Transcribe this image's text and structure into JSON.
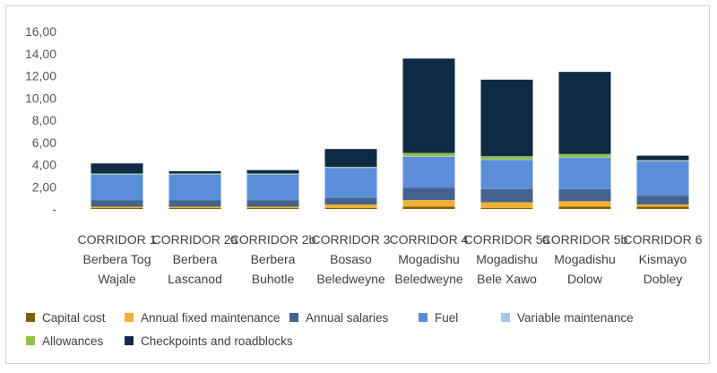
{
  "chart_data": {
    "type": "bar",
    "stacked": true,
    "categories": [
      [
        "CORRIDOR 1",
        "Berbera Tog",
        "Wajale"
      ],
      [
        "CORRIDOR 2a",
        "Berbera",
        "Lascanod"
      ],
      [
        "CORRIDOR 2b",
        "Berbera",
        "Buhotle"
      ],
      [
        "CORRIDOR 3",
        "Bosaso",
        "Beledweyne"
      ],
      [
        "CORRIDOR 4",
        "Mogadishu",
        "Beledweyne"
      ],
      [
        "CORRIDOR 5a",
        "Mogadishu",
        "Bele Xawo"
      ],
      [
        "CORRIDOR 5b",
        "Mogadishu",
        "Dolow"
      ],
      [
        "CORRIDOR 6",
        "Kismayo",
        "Dobley"
      ]
    ],
    "series": [
      {
        "name": "Capital cost",
        "color": "#7f6000",
        "values": [
          0.1,
          0.1,
          0.1,
          0.1,
          0.2,
          0.1,
          0.2,
          0.2
        ]
      },
      {
        "name": "Annual fixed maintenance",
        "color": "#f2b134",
        "values": [
          0.1,
          0.1,
          0.1,
          0.3,
          0.6,
          0.5,
          0.5,
          0.2
        ]
      },
      {
        "name": "Annual salaries",
        "color": "#44648f",
        "values": [
          0.6,
          0.6,
          0.6,
          0.6,
          1.1,
          1.2,
          1.1,
          0.8
        ]
      },
      {
        "name": "Fuel",
        "color": "#5b8ed8",
        "values": [
          2.3,
          2.3,
          2.3,
          2.7,
          2.8,
          2.6,
          2.8,
          3.1
        ]
      },
      {
        "name": "Variable maintenance",
        "color": "#a9c4e8",
        "values": [
          0.05,
          0.05,
          0.05,
          0.05,
          0.05,
          0.05,
          0.05,
          0.05
        ]
      },
      {
        "name": "Allowances",
        "color": "#8fc04f",
        "values": [
          0.05,
          0.05,
          0.05,
          0.05,
          0.3,
          0.3,
          0.3,
          0.05
        ]
      },
      {
        "name": "Checkpoints and roadblocks",
        "color": "#0f2a45",
        "values": [
          0.9,
          0.2,
          0.3,
          1.6,
          8.5,
          6.9,
          7.4,
          0.4
        ]
      }
    ],
    "yticks": [
      "-",
      "2,00",
      "4,00",
      "6,00",
      "8,00",
      "10,00",
      "12,00",
      "14,00",
      "16,00"
    ],
    "ylim": [
      0,
      16
    ],
    "grid": false,
    "legend_position": "bottom"
  }
}
